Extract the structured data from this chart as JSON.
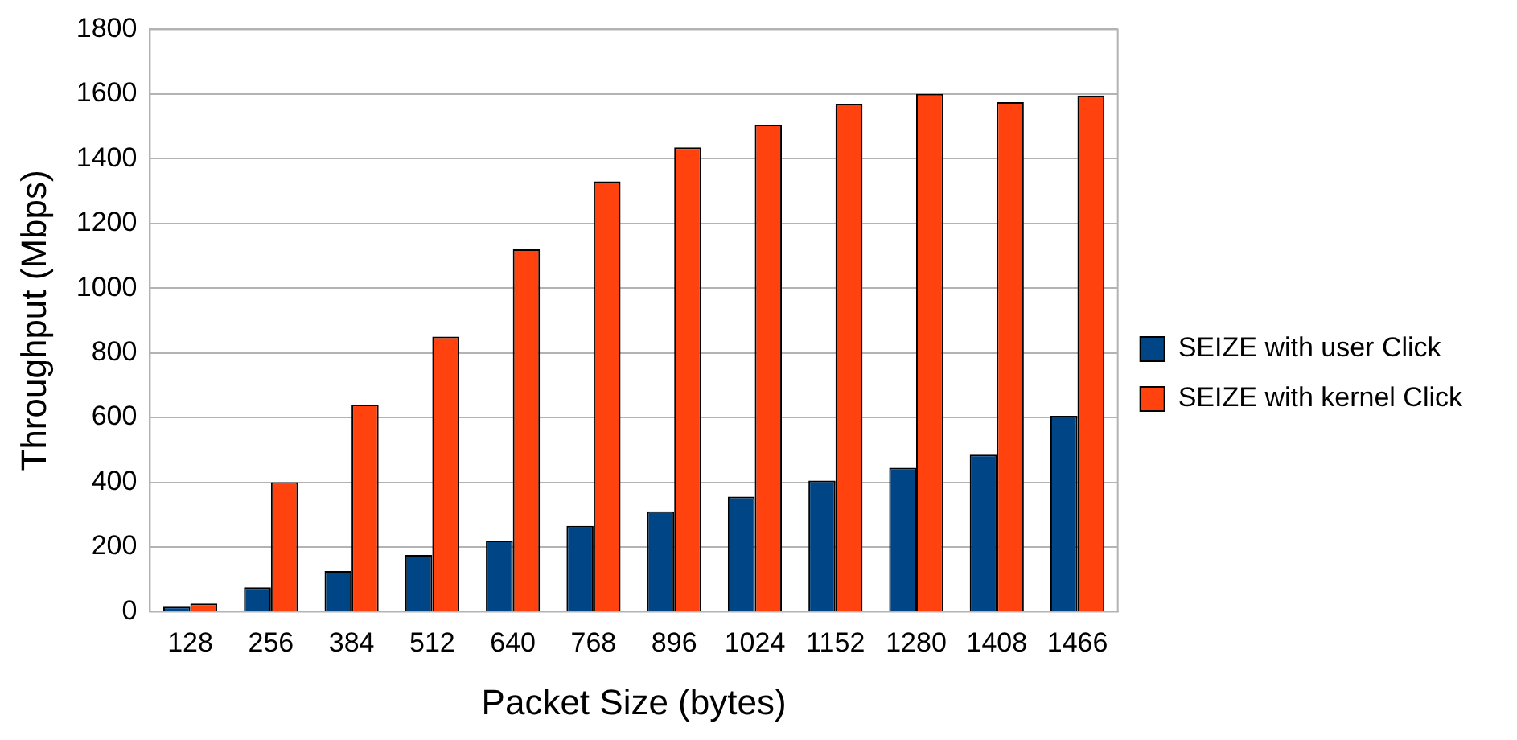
{
  "chart_data": {
    "type": "bar",
    "xlabel": "Packet Size (bytes)",
    "ylabel": "Throughput (Mbps)",
    "categories": [
      "128",
      "256",
      "384",
      "512",
      "640",
      "768",
      "896",
      "1024",
      "1152",
      "1280",
      "1408",
      "1466"
    ],
    "series": [
      {
        "name": "SEIZE with user Click",
        "color": "#004586",
        "values": [
          15,
          75,
          125,
          175,
          220,
          265,
          310,
          355,
          405,
          445,
          485,
          605
        ]
      },
      {
        "name": "SEIZE with kernel Click",
        "color": "#ff420e",
        "values": [
          25,
          400,
          640,
          850,
          1120,
          1330,
          1435,
          1505,
          1570,
          1600,
          1575,
          1595
        ]
      }
    ],
    "ylim": [
      0,
      1800
    ],
    "yticks": [
      0,
      200,
      400,
      600,
      800,
      1000,
      1200,
      1400,
      1600,
      1800
    ],
    "grid": "y",
    "legend": "right"
  }
}
